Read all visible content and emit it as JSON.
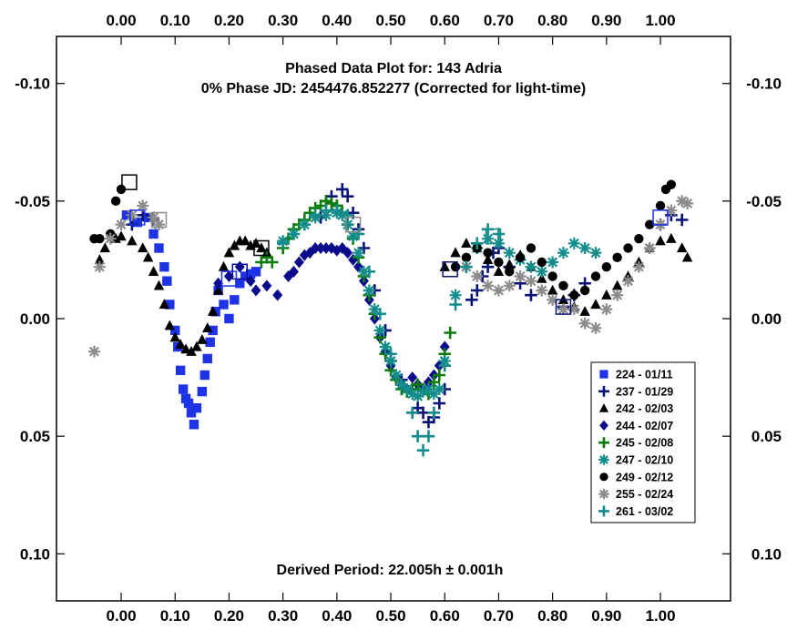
{
  "chart_data": {
    "type": "scatter",
    "title": "Phased Data Plot for: 143 Adria",
    "subtitle": "0% Phase JD:  2454476.852277   (Corrected for light-time)",
    "annotation": "Derived Period: 22.005h ± 0.001h",
    "xlabel": "",
    "ylabel": "",
    "xlim": [
      -0.12,
      1.13
    ],
    "ylim": [
      -0.12,
      0.12
    ],
    "y_inverted": true,
    "x_ticks": [
      "0.00",
      "0.10",
      "0.20",
      "0.30",
      "0.40",
      "0.50",
      "0.60",
      "0.70",
      "0.80",
      "0.90",
      "1.00"
    ],
    "y_ticks": [
      "-0.10",
      "-0.05",
      "0.00",
      "0.05",
      "0.10"
    ],
    "grid": false,
    "legend_position": "lower-right",
    "series": [
      {
        "name": "224 - 01/11",
        "marker": "square",
        "color": "#1e32e6",
        "x": [
          0.01,
          0.03,
          0.05,
          0.06,
          0.07,
          0.08,
          0.085,
          0.09,
          0.1,
          0.105,
          0.11,
          0.115,
          0.12,
          0.125,
          0.13,
          0.135,
          0.14,
          0.15,
          0.155,
          0.16,
          0.165,
          0.17,
          0.175,
          0.18,
          0.19,
          0.2,
          0.21,
          0.22,
          0.23,
          0.24,
          0.25
        ],
        "y": [
          -0.044,
          -0.041,
          -0.043,
          -0.036,
          -0.03,
          -0.022,
          -0.016,
          -0.006,
          0.005,
          0.012,
          0.022,
          0.03,
          0.034,
          0.036,
          0.04,
          0.045,
          0.038,
          0.031,
          0.024,
          0.017,
          0.01,
          0.005,
          -0.003,
          -0.012,
          -0.006,
          0.0,
          -0.008,
          -0.015,
          -0.018,
          -0.019,
          -0.02
        ]
      },
      {
        "name": "237 - 01/29",
        "marker": "plus",
        "color": "#0a1478",
        "x": [
          0.02,
          0.04,
          0.06,
          0.37,
          0.38,
          0.39,
          0.4,
          0.41,
          0.42,
          0.43,
          0.44,
          0.45,
          0.47,
          0.49,
          0.5,
          0.52,
          0.54,
          0.55,
          0.56,
          0.57,
          0.58,
          0.59,
          0.6,
          0.65,
          0.66,
          0.67,
          0.68,
          0.69,
          0.7,
          0.72,
          0.74,
          0.76,
          0.82,
          0.84,
          0.86,
          1.0,
          1.02,
          1.04
        ],
        "y": [
          -0.04,
          -0.044,
          -0.042,
          -0.043,
          -0.05,
          -0.052,
          -0.048,
          -0.055,
          -0.052,
          -0.045,
          -0.038,
          -0.03,
          -0.012,
          0.005,
          0.018,
          0.026,
          0.03,
          0.038,
          0.04,
          0.044,
          0.042,
          0.036,
          0.03,
          -0.008,
          -0.012,
          -0.018,
          -0.022,
          -0.028,
          -0.03,
          -0.022,
          -0.015,
          -0.01,
          -0.005,
          -0.01,
          -0.015,
          -0.04,
          -0.044,
          -0.042
        ]
      },
      {
        "name": "242 - 02/03",
        "marker": "triangle",
        "color": "#000000",
        "x": [
          -0.04,
          -0.03,
          -0.01,
          0.0,
          0.02,
          0.04,
          0.05,
          0.06,
          0.07,
          0.08,
          0.09,
          0.1,
          0.11,
          0.12,
          0.13,
          0.14,
          0.15,
          0.16,
          0.17,
          0.18,
          0.19,
          0.2,
          0.21,
          0.22,
          0.23,
          0.24,
          0.25,
          0.26,
          0.27,
          0.6,
          0.62,
          0.64,
          0.66,
          0.68,
          0.7,
          0.72,
          0.74,
          0.76,
          0.78,
          0.8,
          0.82,
          0.84,
          0.86,
          0.88,
          0.9,
          0.92,
          0.94,
          0.96,
          0.98,
          1.0,
          1.02,
          1.04,
          1.05
        ],
        "y": [
          -0.025,
          -0.03,
          -0.034,
          -0.035,
          -0.033,
          -0.03,
          -0.026,
          -0.02,
          -0.014,
          -0.006,
          0.003,
          0.008,
          0.011,
          0.013,
          0.014,
          0.012,
          0.009,
          0.004,
          -0.003,
          -0.012,
          -0.022,
          -0.028,
          -0.031,
          -0.033,
          -0.033,
          -0.031,
          -0.032,
          -0.03,
          -0.028,
          -0.022,
          -0.028,
          -0.032,
          -0.03,
          -0.025,
          -0.02,
          -0.023,
          -0.027,
          -0.022,
          -0.017,
          -0.012,
          -0.008,
          -0.005,
          -0.003,
          -0.006,
          -0.01,
          -0.014,
          -0.018,
          -0.024,
          -0.03,
          -0.033,
          -0.034,
          -0.03,
          -0.026
        ]
      },
      {
        "name": "244 - 02/07",
        "marker": "diamond",
        "color": "#0a0a8c",
        "x": [
          0.18,
          0.2,
          0.22,
          0.24,
          0.25,
          0.27,
          0.29,
          0.31,
          0.32,
          0.33,
          0.34,
          0.35,
          0.36,
          0.37,
          0.38,
          0.39,
          0.4,
          0.41,
          0.42,
          0.43,
          0.44,
          0.45,
          0.46,
          0.47,
          0.48,
          0.49,
          0.5,
          0.51,
          0.52,
          0.53,
          0.54,
          0.55,
          0.56,
          0.57,
          0.58,
          0.59,
          0.6
        ],
        "y": [
          -0.015,
          -0.018,
          -0.022,
          -0.016,
          -0.012,
          -0.014,
          -0.01,
          -0.018,
          -0.02,
          -0.024,
          -0.027,
          -0.028,
          -0.03,
          -0.03,
          -0.03,
          -0.03,
          -0.029,
          -0.03,
          -0.028,
          -0.025,
          -0.022,
          -0.016,
          -0.008,
          0.0,
          0.008,
          0.014,
          0.02,
          0.025,
          0.028,
          0.03,
          0.025,
          0.028,
          0.03,
          0.027,
          0.024,
          0.02,
          0.012
        ]
      },
      {
        "name": "245 - 02/08",
        "marker": "plus",
        "color": "#0a7d0a",
        "x": [
          0.26,
          0.27,
          0.28,
          0.3,
          0.31,
          0.32,
          0.33,
          0.34,
          0.35,
          0.36,
          0.37,
          0.38,
          0.39,
          0.4,
          0.41,
          0.42,
          0.43,
          0.44,
          0.45,
          0.46,
          0.47,
          0.48,
          0.49,
          0.5,
          0.51,
          0.52,
          0.53,
          0.54,
          0.55,
          0.56,
          0.57,
          0.58,
          0.59,
          0.6,
          0.61
        ],
        "y": [
          -0.024,
          -0.026,
          -0.024,
          -0.03,
          -0.034,
          -0.038,
          -0.04,
          -0.042,
          -0.045,
          -0.047,
          -0.048,
          -0.05,
          -0.049,
          -0.048,
          -0.045,
          -0.04,
          -0.034,
          -0.026,
          -0.018,
          -0.01,
          -0.002,
          0.008,
          0.015,
          0.022,
          0.026,
          0.03,
          0.031,
          0.03,
          0.028,
          0.03,
          0.032,
          0.027,
          0.024,
          0.015,
          0.006
        ]
      },
      {
        "name": "247 - 02/10",
        "marker": "star",
        "color": "#148c8c",
        "x": [
          0.3,
          0.32,
          0.34,
          0.36,
          0.38,
          0.4,
          0.41,
          0.42,
          0.43,
          0.44,
          0.45,
          0.46,
          0.47,
          0.48,
          0.49,
          0.5,
          0.51,
          0.52,
          0.53,
          0.54,
          0.55,
          0.56,
          0.57,
          0.58,
          0.59,
          0.6,
          0.62,
          0.64,
          0.66,
          0.68,
          0.7,
          0.72,
          0.74,
          0.76,
          0.78,
          0.8,
          0.82,
          0.84,
          0.86,
          0.88
        ],
        "y": [
          -0.033,
          -0.036,
          -0.04,
          -0.043,
          -0.044,
          -0.045,
          -0.044,
          -0.04,
          -0.035,
          -0.028,
          -0.02,
          -0.012,
          -0.004,
          0.005,
          0.012,
          0.018,
          0.024,
          0.028,
          0.03,
          0.032,
          0.033,
          0.031,
          0.03,
          0.032,
          0.03,
          0.018,
          -0.01,
          -0.022,
          -0.03,
          -0.034,
          -0.032,
          -0.028,
          -0.025,
          -0.022,
          -0.02,
          -0.024,
          -0.028,
          -0.032,
          -0.03,
          -0.028
        ]
      },
      {
        "name": "249 - 02/12",
        "marker": "circle",
        "color": "#000000",
        "x": [
          -0.05,
          -0.04,
          -0.02,
          -0.01,
          0.0,
          0.62,
          0.64,
          0.66,
          0.68,
          0.7,
          0.72,
          0.74,
          0.76,
          0.78,
          0.8,
          0.82,
          0.84,
          0.86,
          0.88,
          0.9,
          0.92,
          0.94,
          0.96,
          0.98,
          1.0,
          1.01,
          1.02
        ],
        "y": [
          -0.034,
          -0.034,
          -0.036,
          -0.05,
          -0.055,
          -0.022,
          -0.026,
          -0.03,
          -0.028,
          -0.024,
          -0.02,
          -0.026,
          -0.03,
          -0.024,
          -0.018,
          -0.014,
          -0.01,
          -0.012,
          -0.018,
          -0.022,
          -0.026,
          -0.03,
          -0.034,
          -0.04,
          -0.048,
          -0.055,
          -0.057
        ]
      },
      {
        "name": "255 - 02/24",
        "marker": "star",
        "color": "#8c8c8c",
        "x": [
          -0.05,
          -0.04,
          -0.02,
          0.0,
          0.02,
          0.04,
          0.06,
          0.07,
          0.64,
          0.66,
          0.68,
          0.7,
          0.72,
          0.74,
          0.76,
          0.78,
          0.8,
          0.82,
          0.84,
          0.86,
          0.88,
          0.9,
          0.92,
          0.94,
          0.96,
          0.98,
          1.0,
          1.02,
          1.04,
          1.05
        ],
        "y": [
          0.014,
          -0.022,
          -0.034,
          -0.04,
          -0.044,
          -0.048,
          -0.043,
          -0.04,
          -0.022,
          -0.018,
          -0.014,
          -0.012,
          -0.014,
          -0.018,
          -0.016,
          -0.012,
          -0.008,
          -0.004,
          -0.004,
          0.002,
          0.004,
          -0.004,
          -0.01,
          -0.016,
          -0.022,
          -0.03,
          -0.04,
          -0.046,
          -0.05,
          -0.049
        ]
      },
      {
        "name": "261 - 03/02",
        "marker": "plus",
        "color": "#148c8c",
        "x": [
          0.3,
          0.32,
          0.34,
          0.36,
          0.38,
          0.4,
          0.42,
          0.44,
          0.46,
          0.48,
          0.5,
          0.52,
          0.54,
          0.55,
          0.56,
          0.57,
          0.58,
          0.6,
          0.62,
          0.64,
          0.66,
          0.68,
          0.7
        ],
        "y": [
          -0.032,
          -0.036,
          -0.04,
          -0.044,
          -0.046,
          -0.046,
          -0.044,
          -0.036,
          -0.02,
          -0.002,
          0.015,
          0.028,
          0.04,
          0.05,
          0.056,
          0.05,
          0.04,
          0.02,
          -0.006,
          -0.022,
          -0.032,
          -0.038,
          -0.036
        ]
      }
    ],
    "outline_markers": [
      {
        "x": 0.015,
        "y": -0.058,
        "color": "#000000"
      },
      {
        "x": 0.03,
        "y": -0.043,
        "color": "#1e32e6"
      },
      {
        "x": 0.07,
        "y": -0.042,
        "color": "#8c8c8c"
      },
      {
        "x": 0.2,
        "y": -0.017,
        "color": "#1e32e6"
      },
      {
        "x": 0.22,
        "y": -0.02,
        "color": "#0a0a8c"
      },
      {
        "x": 0.26,
        "y": -0.03,
        "color": "#000000"
      },
      {
        "x": 0.43,
        "y": -0.04,
        "color": "#8c8c8c"
      },
      {
        "x": 0.61,
        "y": -0.021,
        "color": "#0a1478"
      },
      {
        "x": 0.69,
        "y": -0.035,
        "color": "#148c8c"
      },
      {
        "x": 0.82,
        "y": -0.005,
        "color": "#0a1478"
      },
      {
        "x": 1.0,
        "y": -0.043,
        "color": "#1e32e6"
      }
    ]
  }
}
